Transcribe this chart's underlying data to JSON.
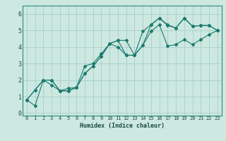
{
  "xlabel": "Humidex (Indice chaleur)",
  "ylabel": "",
  "bg_color": "#cce8e0",
  "grid_color": "#a8d0c8",
  "line_color": "#1a7a6e",
  "x_ticks": [
    0,
    1,
    2,
    3,
    4,
    5,
    6,
    7,
    8,
    9,
    10,
    11,
    12,
    13,
    14,
    15,
    16,
    17,
    18,
    19,
    20,
    21,
    22,
    23
  ],
  "y_ticks": [
    0,
    1,
    2,
    3,
    4,
    5,
    6
  ],
  "xlim": [
    -0.5,
    23.5
  ],
  "ylim": [
    -0.15,
    6.5
  ],
  "series": [
    {
      "x": [
        0,
        1,
        2,
        3,
        4,
        5,
        6,
        7,
        8,
        9,
        10,
        11,
        12,
        13,
        14,
        15,
        16,
        17,
        18,
        19,
        20,
        21,
        22,
        23
      ],
      "y": [
        0.8,
        1.4,
        2.0,
        1.7,
        1.35,
        1.5,
        1.55,
        2.4,
        2.85,
        3.45,
        4.2,
        4.4,
        3.5,
        3.5,
        4.95,
        5.35,
        5.75,
        5.3,
        5.15,
        5.75,
        5.25,
        5.3,
        5.3,
        5.0
      ]
    },
    {
      "x": [
        0,
        1,
        2,
        3,
        4,
        5,
        6,
        7,
        8,
        9,
        10,
        11,
        12,
        13,
        14,
        15,
        16,
        17,
        18,
        19,
        20,
        21,
        22,
        23
      ],
      "y": [
        0.8,
        1.4,
        2.0,
        2.0,
        1.35,
        1.35,
        1.55,
        2.85,
        3.0,
        3.6,
        4.2,
        4.4,
        4.4,
        3.5,
        4.1,
        5.35,
        5.75,
        5.35,
        5.15,
        5.75,
        5.25,
        5.3,
        5.3,
        5.0
      ]
    },
    {
      "x": [
        0,
        1,
        2,
        3,
        4,
        5,
        6,
        7,
        8,
        9,
        10,
        11,
        12,
        13,
        14,
        15,
        16,
        17,
        18,
        19,
        20,
        21,
        22,
        23
      ],
      "y": [
        0.8,
        0.45,
        2.0,
        2.0,
        1.35,
        1.35,
        1.55,
        2.4,
        2.85,
        3.45,
        4.2,
        4.0,
        3.5,
        3.5,
        4.1,
        4.95,
        5.35,
        4.05,
        4.15,
        4.45,
        4.15,
        4.45,
        4.75,
        5.0
      ]
    }
  ]
}
